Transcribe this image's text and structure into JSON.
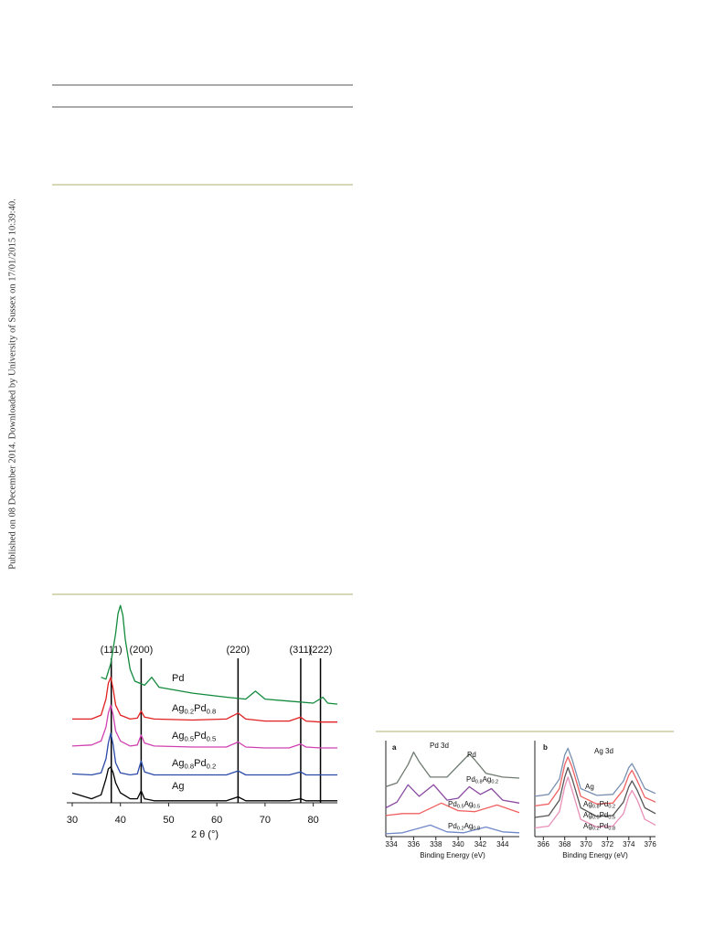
{
  "watermark": "Published on 08 December 2014. Downloaded by University of Sussex on 17/01/2015 10:39:40.",
  "chart_data": [
    {
      "type": "line",
      "xlabel": "2 θ (°)",
      "xlim": [
        30,
        85
      ],
      "xticks": [
        30,
        40,
        50,
        60,
        70,
        80
      ],
      "ylim": [
        0,
        100
      ],
      "reference_lines": [
        {
          "x": 38.1,
          "label": "(111)"
        },
        {
          "x": 44.3,
          "label": "(200)"
        },
        {
          "x": 64.4,
          "label": "(220)"
        },
        {
          "x": 77.4,
          "label": "(311)"
        },
        {
          "x": 81.5,
          "label": "(222)"
        }
      ],
      "series": [
        {
          "name": "Pd",
          "color": "#128a3c",
          "x": [
            36,
            37,
            38,
            39,
            39.5,
            40,
            40.5,
            41,
            42,
            43,
            45,
            46.5,
            48,
            55,
            62,
            66,
            68,
            70,
            75,
            80,
            82,
            83,
            85
          ],
          "values": [
            63,
            62,
            70,
            85,
            95,
            99,
            94,
            82,
            67,
            61,
            59,
            63,
            58,
            55,
            53,
            52,
            56,
            52,
            51,
            50,
            53,
            50,
            49.5
          ]
        },
        {
          "name": "Ag0.2Pd0.8",
          "color": "#e02020",
          "x": [
            30,
            34,
            36,
            37,
            37.5,
            38,
            38.5,
            39,
            40,
            42,
            43.5,
            44.3,
            45,
            47,
            55,
            62,
            64.4,
            66,
            70,
            75,
            77.4,
            78.5,
            81.5,
            83,
            85
          ],
          "values": [
            42,
            42,
            44,
            52,
            60,
            63,
            57,
            49,
            44,
            42,
            42.5,
            46,
            43,
            42,
            41.5,
            42,
            45,
            42,
            41,
            41,
            43,
            41,
            40.5,
            40.5,
            40.5
          ]
        },
        {
          "name": "Ag0.5Pd0.5",
          "color": "#d040b0",
          "x": [
            30,
            34,
            36,
            37,
            37.5,
            38,
            38.5,
            39,
            40,
            42,
            43.5,
            44.3,
            45,
            47,
            55,
            62,
            64.4,
            66,
            70,
            75,
            77.4,
            78.5,
            81.5,
            83,
            85
          ],
          "values": [
            28.5,
            29,
            31,
            38,
            45,
            49,
            44,
            36,
            31,
            28.5,
            29,
            34,
            30,
            28.5,
            28,
            28,
            30.5,
            28,
            27.5,
            27.5,
            29.5,
            28,
            27.5,
            27.5,
            27.5
          ]
        },
        {
          "name": "Ag0.8Pd0.2",
          "color": "#2a4aa8",
          "x": [
            30,
            34,
            36,
            37,
            37.5,
            38,
            38.5,
            39,
            40,
            42,
            43.5,
            44.3,
            45,
            47,
            55,
            62,
            64.4,
            66,
            70,
            75,
            77.4,
            78.5,
            81.5,
            83,
            85
          ],
          "values": [
            14.5,
            14,
            15,
            22,
            30,
            35,
            29,
            20,
            15,
            14,
            14.5,
            21,
            15.5,
            14,
            14,
            14,
            16,
            14,
            14,
            14,
            15.5,
            14,
            14,
            14,
            14
          ]
        },
        {
          "name": "Ag",
          "color": "#000000",
          "x": [
            30,
            34,
            36,
            37,
            37.5,
            38,
            38.5,
            39,
            40,
            42,
            43.5,
            44.3,
            45,
            47,
            55,
            62,
            64.4,
            66,
            70,
            75,
            77.4,
            78.5,
            81.5,
            83,
            85
          ],
          "values": [
            5,
            2,
            4,
            12,
            17,
            18,
            15,
            10,
            5,
            2,
            2,
            6,
            2,
            1,
            1,
            1,
            3,
            1,
            1,
            1,
            2,
            1,
            1,
            1,
            1
          ]
        }
      ]
    },
    {
      "type": "line",
      "panel": "a",
      "title": "Pd 3d",
      "xlabel": "Binding Energy (eV)",
      "xlim": [
        333.5,
        345.5
      ],
      "xticks": [
        334,
        336,
        338,
        340,
        342,
        344
      ],
      "ylim": [
        0,
        100
      ],
      "series": [
        {
          "name": "Pd",
          "color": "#6e7a70",
          "x": [
            333.5,
            334.5,
            335.5,
            336,
            336.5,
            337.5,
            339,
            340.5,
            341,
            341.5,
            342.5,
            344,
            345.5
          ],
          "values": [
            52,
            56,
            75,
            88,
            78,
            62,
            62,
            80,
            86,
            80,
            66,
            62,
            61
          ]
        },
        {
          "name": "Pd0.8Ag0.2",
          "color": "#8a4aa0",
          "x": [
            333.5,
            334.5,
            335.5,
            336.5,
            337.8,
            339,
            340,
            341,
            342,
            343,
            344,
            345.5
          ],
          "values": [
            30,
            36,
            54,
            42,
            54,
            38,
            40,
            52,
            44,
            50,
            38,
            35
          ]
        },
        {
          "name": "Pd0.5Ag0.5",
          "color": "#f06060",
          "x": [
            333.5,
            335,
            336.5,
            338.5,
            340,
            341.5,
            343.5,
            345.5
          ],
          "values": [
            22,
            24,
            24,
            35,
            27,
            26,
            33,
            25
          ]
        },
        {
          "name": "Pd0.2Ag0.8",
          "color": "#7088c8",
          "x": [
            333.5,
            335,
            337.5,
            339,
            340.5,
            342.5,
            344,
            345.5
          ],
          "values": [
            3,
            4,
            12,
            5,
            4,
            10,
            5,
            4
          ]
        }
      ]
    },
    {
      "type": "line",
      "panel": "b",
      "title": "Ag 3d",
      "xlabel": "Binding Energy (eV)",
      "xlim": [
        365.2,
        376.5
      ],
      "xticks": [
        366,
        368,
        370,
        372,
        374,
        376
      ],
      "ylim": [
        0,
        100
      ],
      "series": [
        {
          "name": "Ag",
          "color": "#7890b0",
          "x": [
            365.2,
            366.5,
            367.5,
            368,
            368.3,
            368.7,
            369.5,
            371,
            372.5,
            373.5,
            374,
            374.3,
            374.8,
            375.5,
            376.5
          ],
          "values": [
            42,
            44,
            60,
            85,
            92,
            80,
            50,
            43,
            44,
            58,
            72,
            76,
            66,
            50,
            45
          ]
        },
        {
          "name": "Ag0.8Pd0.2",
          "color": "#f06060",
          "x": [
            365.2,
            366.5,
            367.5,
            368,
            368.3,
            368.7,
            369.5,
            371,
            372.5,
            373.5,
            374,
            374.3,
            374.8,
            375.5,
            376.5
          ],
          "values": [
            32,
            34,
            50,
            75,
            83,
            72,
            42,
            34,
            35,
            49,
            64,
            69,
            58,
            41,
            36
          ]
        },
        {
          "name": "Ag0.5Pd0.5",
          "color": "#555555",
          "x": [
            365.2,
            366.5,
            367.5,
            368,
            368.3,
            368.7,
            369.5,
            371,
            372.5,
            373.5,
            374,
            374.3,
            374.8,
            375.5,
            376.5
          ],
          "values": [
            20,
            22,
            38,
            62,
            72,
            60,
            30,
            21,
            22,
            36,
            52,
            58,
            48,
            30,
            24
          ]
        },
        {
          "name": "Ag0.2Pd0.8",
          "color": "#e890b8",
          "x": [
            365.2,
            366.5,
            367.5,
            368,
            368.3,
            368.7,
            369.5,
            371,
            372.5,
            373.5,
            374,
            374.3,
            374.8,
            375.5,
            376.5
          ],
          "values": [
            9,
            11,
            26,
            52,
            62,
            48,
            18,
            10,
            11,
            24,
            42,
            48,
            38,
            18,
            12
          ]
        }
      ]
    }
  ]
}
